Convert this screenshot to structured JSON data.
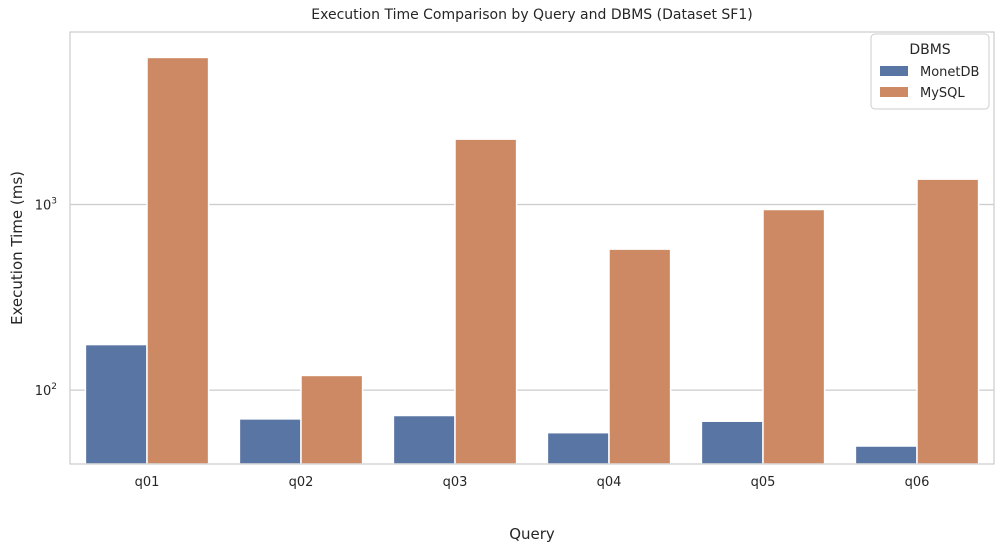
{
  "chart_data": {
    "type": "bar",
    "title": "Execution Time Comparison by Query and DBMS (Dataset SF1)",
    "xlabel": "Query",
    "ylabel": "Execution Time (ms)",
    "yscale": "log",
    "ylim": [
      40,
      8500
    ],
    "yticks": [
      100,
      1000
    ],
    "ytick_labels": [
      {
        "base": "10",
        "exp": "2"
      },
      {
        "base": "10",
        "exp": "3"
      }
    ],
    "grid": "y",
    "categories": [
      "q01",
      "q02",
      "q03",
      "q04",
      "q05",
      "q06"
    ],
    "legend": {
      "title": "DBMS",
      "placement": "upper-right"
    },
    "series": [
      {
        "name": "MonetDB",
        "color": "#5975a4",
        "values": [
          176,
          70,
          73,
          59,
          68,
          50
        ]
      },
      {
        "name": "MySQL",
        "color": "#cc8963",
        "values": [
          6200,
          120,
          2250,
          575,
          940,
          1370
        ]
      }
    ]
  }
}
